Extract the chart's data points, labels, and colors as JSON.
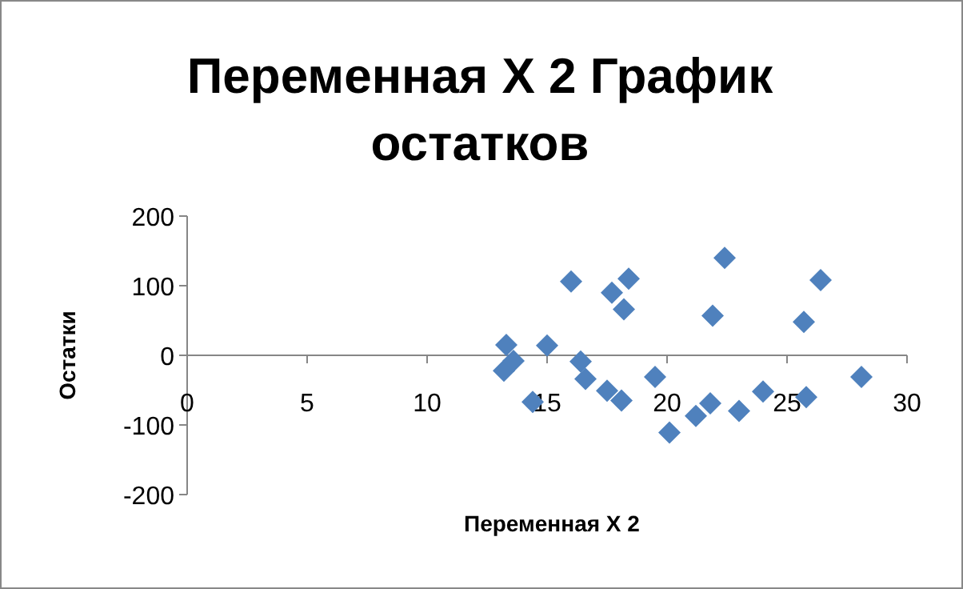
{
  "chart_data": {
    "type": "scatter",
    "title": "Переменная X 2 График остатков",
    "xlabel": "Переменная X 2",
    "ylabel": "Остатки",
    "marker": "diamond",
    "xlim": [
      0,
      30
    ],
    "xticks": [
      0,
      5,
      10,
      15,
      20,
      25,
      30
    ],
    "ylim": [
      -200,
      200
    ],
    "yticks": [
      -200,
      -100,
      0,
      100,
      200
    ],
    "series": [
      {
        "color": "#4f81bd",
        "x": [
          13.3,
          13.2,
          13.6,
          14.4,
          15.0,
          16.0,
          16.4,
          16.6,
          17.5,
          18.1,
          17.7,
          18.4,
          18.2,
          19.5,
          20.1,
          21.2,
          21.8,
          21.9,
          22.4,
          23.0,
          24.0,
          25.7,
          25.8,
          26.4,
          28.1
        ],
        "values": [
          15,
          -22,
          -8,
          -67,
          14,
          106,
          -9,
          -34,
          -51,
          -65,
          90,
          110,
          66,
          -31,
          -111,
          -87,
          -69,
          57,
          140,
          -80,
          -52,
          48,
          -60,
          108,
          -31
        ]
      }
    ]
  }
}
